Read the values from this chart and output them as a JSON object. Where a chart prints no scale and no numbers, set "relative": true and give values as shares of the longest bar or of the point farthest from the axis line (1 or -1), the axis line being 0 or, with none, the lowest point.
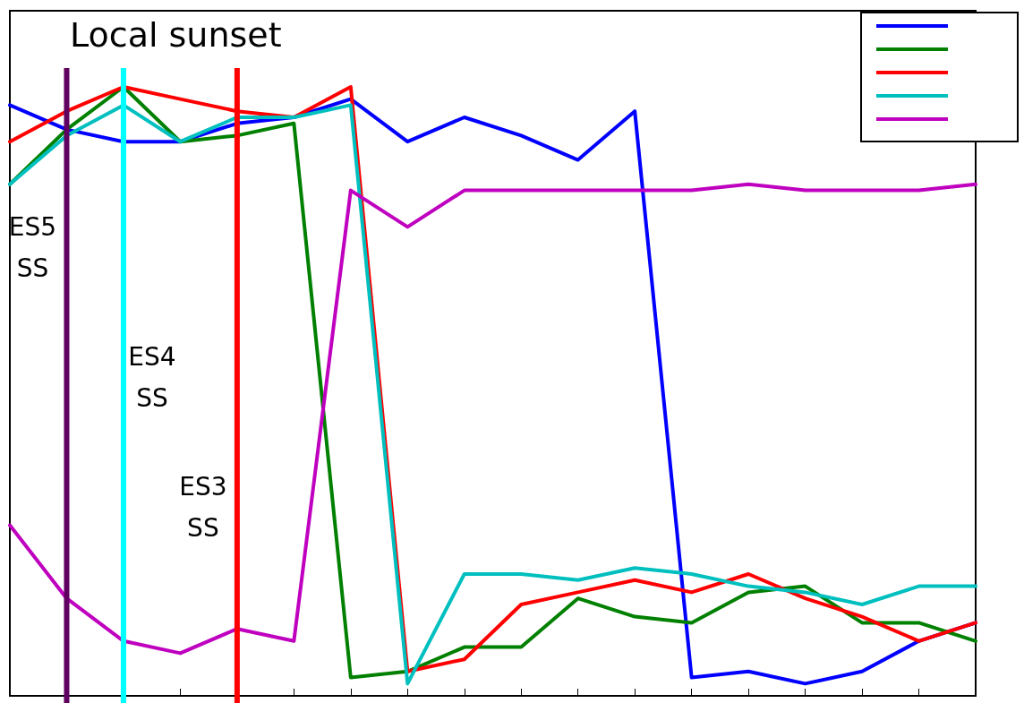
{
  "chart_data": {
    "type": "line",
    "title": "Local sunset",
    "relative": true,
    "grid": false,
    "marker": "none",
    "line_style": "solid",
    "categories": [
      null,
      null,
      null,
      null,
      null,
      null,
      null,
      null,
      null,
      null,
      null,
      null,
      null,
      null,
      null,
      null,
      null,
      null
    ],
    "series": [
      {
        "color": "#0000ff",
        "values": [
          0.97,
          0.93,
          0.91,
          0.91,
          0.94,
          0.95,
          0.98,
          0.91,
          0.95,
          0.92,
          0.88,
          0.96,
          0.03,
          0.04,
          0.02,
          0.04,
          0.09,
          0.12
        ]
      },
      {
        "color": "#008000",
        "values": [
          0.84,
          0.93,
          1.0,
          0.91,
          0.92,
          0.94,
          0.03,
          0.04,
          0.08,
          0.08,
          0.16,
          0.13,
          0.12,
          0.17,
          0.18,
          0.12,
          0.12,
          0.09
        ]
      },
      {
        "color": "#ff0000",
        "values": [
          0.91,
          0.96,
          1.0,
          0.98,
          0.96,
          0.95,
          1.0,
          0.04,
          0.06,
          0.15,
          0.17,
          0.19,
          0.17,
          0.2,
          0.16,
          0.13,
          0.09,
          0.12
        ]
      },
      {
        "color": "#00bfbf",
        "values": [
          0.84,
          0.92,
          0.97,
          0.91,
          0.95,
          0.95,
          0.97,
          0.02,
          0.2,
          0.2,
          0.19,
          0.21,
          0.2,
          0.18,
          0.17,
          0.15,
          0.18,
          0.18
        ]
      },
      {
        "color": "#bf00bf",
        "values": [
          0.28,
          0.16,
          0.09,
          0.07,
          0.11,
          0.09,
          0.83,
          0.77,
          0.83,
          0.83,
          0.83,
          0.83,
          0.83,
          0.84,
          0.83,
          0.83,
          0.83,
          0.84
        ]
      }
    ],
    "annotations": [
      "ES5\nSS",
      "ES4\nSS",
      "ES3\nSS"
    ]
  }
}
